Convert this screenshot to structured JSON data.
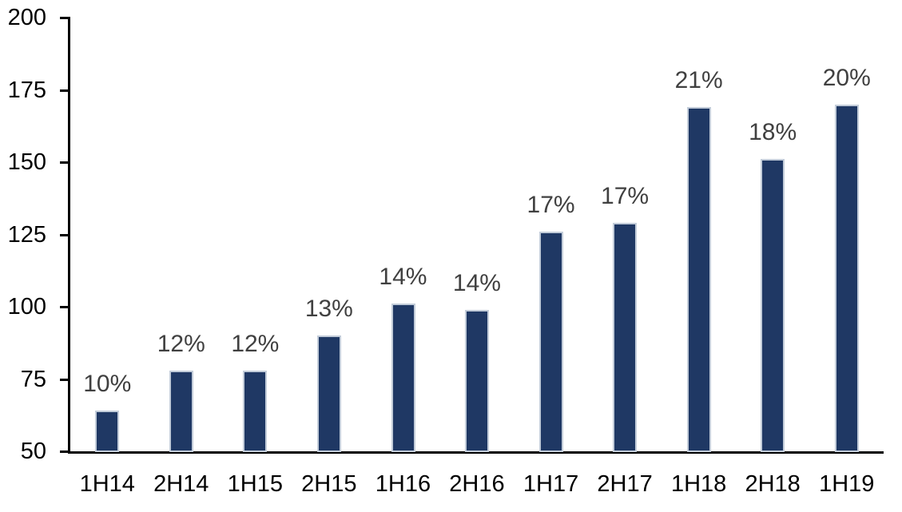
{
  "chart_data": {
    "type": "bar",
    "title": "",
    "xlabel": "",
    "ylabel": "",
    "categories": [
      "1H14",
      "2H14",
      "1H15",
      "2H15",
      "1H16",
      "2H16",
      "1H17",
      "2H17",
      "1H18",
      "2H18",
      "1H19"
    ],
    "values": [
      64,
      78,
      78,
      90,
      101,
      99,
      126,
      129,
      169,
      151,
      170
    ],
    "data_labels": [
      "10%",
      "12%",
      "12%",
      "13%",
      "14%",
      "14%",
      "17%",
      "17%",
      "21%",
      "18%",
      "20%"
    ],
    "ylim": [
      50,
      200
    ],
    "y_ticks": [
      50,
      75,
      100,
      125,
      150,
      175,
      200
    ],
    "grid": false,
    "legend": false,
    "colors": {
      "bar_fill": "#1f3864",
      "bar_border": "#c2ccd9",
      "data_label": "#404040",
      "axis": "#000000",
      "tick_label": "#000000",
      "background": "#ffffff"
    }
  }
}
